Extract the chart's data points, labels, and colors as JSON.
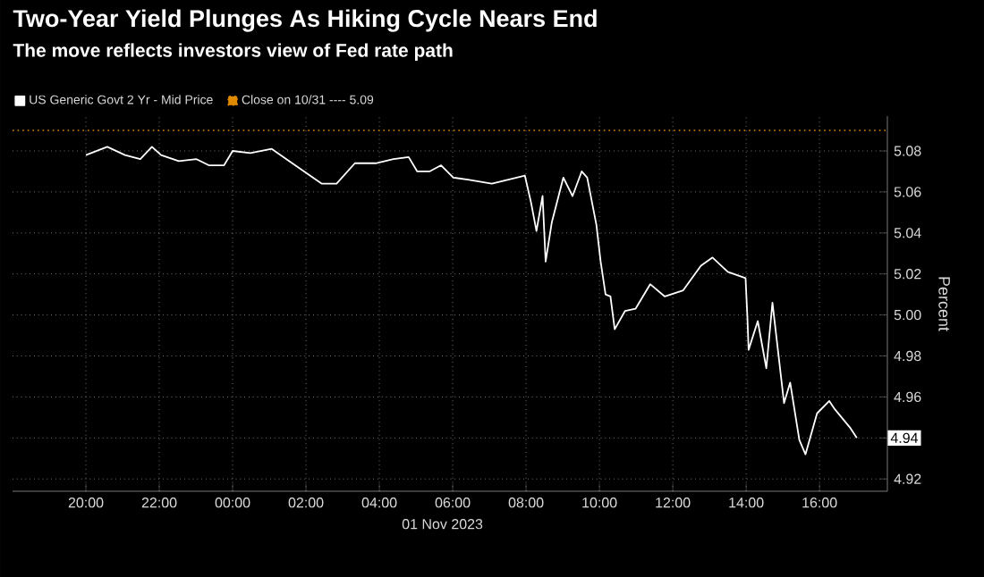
{
  "chart_data": {
    "type": "line",
    "title": "Two-Year Yield Plunges As Hiking Cycle Nears End",
    "subtitle": "The move reflects investors view of Fed rate path",
    "xlabel": "01 Nov 2023",
    "ylabel": "Percent",
    "xlim": [
      "2023-10-31T18:00",
      "2023-11-01T17:51"
    ],
    "ylim": [
      4.914,
      5.097
    ],
    "xticks": [
      {
        "value": "2023-10-31T20:00",
        "label": "20:00"
      },
      {
        "value": "2023-10-31T22:00",
        "label": "22:00"
      },
      {
        "value": "2023-11-01T00:00",
        "label": "00:00"
      },
      {
        "value": "2023-11-01T02:00",
        "label": "02:00"
      },
      {
        "value": "2023-11-01T04:00",
        "label": "04:00"
      },
      {
        "value": "2023-11-01T06:00",
        "label": "06:00"
      },
      {
        "value": "2023-11-01T08:00",
        "label": "08:00"
      },
      {
        "value": "2023-11-01T10:00",
        "label": "10:00"
      },
      {
        "value": "2023-11-01T12:00",
        "label": "12:00"
      },
      {
        "value": "2023-11-01T14:00",
        "label": "14:00"
      },
      {
        "value": "2023-11-01T16:00",
        "label": "16:00"
      }
    ],
    "yticks": [
      4.92,
      4.94,
      4.96,
      4.98,
      "5.00",
      5.02,
      5.04,
      5.06,
      5.08
    ],
    "grid": true,
    "legend": "top left",
    "marker": "none",
    "line_style": "solid",
    "series": [
      {
        "name": "US Generic Govt 2 Yr - Mid Price",
        "color": "#ffffff",
        "x": [
          "2023-10-31T20:00",
          "2023-10-31T20:35",
          "2023-10-31T21:04",
          "2023-10-31T21:29",
          "2023-10-31T21:48",
          "2023-10-31T22:03",
          "2023-10-31T22:32",
          "2023-10-31T23:01",
          "2023-10-31T23:21",
          "2023-10-31T23:46",
          "2023-11-01T00:00",
          "2023-11-01T00:29",
          "2023-11-01T01:04",
          "2023-11-01T01:28",
          "2023-11-01T01:57",
          "2023-11-01T02:26",
          "2023-11-01T02:50",
          "2023-11-01T03:20",
          "2023-11-01T03:54",
          "2023-11-01T04:23",
          "2023-11-01T04:48",
          "2023-11-01T05:02",
          "2023-11-01T05:22",
          "2023-11-01T05:41",
          "2023-11-01T06:01",
          "2023-11-01T06:25",
          "2023-11-01T07:04",
          "2023-11-01T07:58",
          "2023-11-01T08:08",
          "2023-11-01T08:17",
          "2023-11-01T08:27",
          "2023-11-01T08:32",
          "2023-11-01T08:42",
          "2023-11-01T09:01",
          "2023-11-01T09:16",
          "2023-11-01T09:31",
          "2023-11-01T09:40",
          "2023-11-01T09:55",
          "2023-11-01T10:02",
          "2023-11-01T10:10",
          "2023-11-01T10:18",
          "2023-11-01T10:25",
          "2023-11-01T10:42",
          "2023-11-01T10:59",
          "2023-11-01T11:23",
          "2023-11-01T11:47",
          "2023-11-01T12:17",
          "2023-11-01T12:46",
          "2023-11-01T13:05",
          "2023-11-01T13:30",
          "2023-11-01T13:59",
          "2023-11-01T14:02",
          "2023-11-01T14:04",
          "2023-11-01T14:19",
          "2023-11-01T14:33",
          "2023-11-01T14:43",
          "2023-11-01T15:02",
          "2023-11-01T15:12",
          "2023-11-01T15:27",
          "2023-11-01T15:37",
          "2023-11-01T15:56",
          "2023-11-01T16:16",
          "2023-11-01T16:25",
          "2023-11-01T16:50",
          "2023-11-01T17:01"
        ],
        "values": [
          5.078,
          5.082,
          5.078,
          5.076,
          5.082,
          5.078,
          5.075,
          5.076,
          5.073,
          5.073,
          5.08,
          5.079,
          5.081,
          5.076,
          5.07,
          5.064,
          5.064,
          5.074,
          5.074,
          5.076,
          5.077,
          5.07,
          5.07,
          5.073,
          5.067,
          5.066,
          5.064,
          5.068,
          5.055,
          5.041,
          5.058,
          5.026,
          5.045,
          5.067,
          5.058,
          5.07,
          5.067,
          5.044,
          5.026,
          5.01,
          5.009,
          4.993,
          5.002,
          5.003,
          5.015,
          5.009,
          5.012,
          5.024,
          5.028,
          5.021,
          5.018,
          4.999,
          4.983,
          4.997,
          4.974,
          5.006,
          4.957,
          4.967,
          4.939,
          4.932,
          4.952,
          4.958,
          4.954,
          4.945,
          4.94
        ]
      }
    ],
    "ref_lines": [
      {
        "axis": "y",
        "value": 5.09,
        "label": "Close on 10/31 ---- 5.09",
        "color": "#e08a00",
        "line_style": "dotted"
      }
    ]
  }
}
